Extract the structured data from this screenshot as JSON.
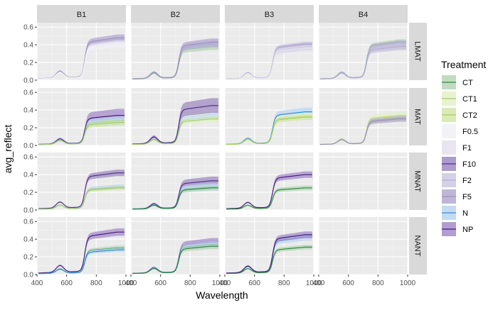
{
  "chart_data": {
    "type": "line",
    "xlabel": "Wavelength",
    "ylabel": "avg_reflect",
    "xlim": [
      400,
      1000
    ],
    "ylim": [
      0,
      0.65
    ],
    "x_ticks": [
      400,
      600,
      800,
      1000
    ],
    "y_ticks": [
      0.0,
      0.2,
      0.4,
      0.6
    ],
    "x_tick_labels": [
      "400",
      "600",
      "800",
      "1000"
    ],
    "y_tick_labels": [
      "0.0",
      "0.2",
      "0.4",
      "0.6"
    ],
    "grid": true,
    "legend_position": "right",
    "panel_background": "#EBEBEB",
    "strip_background": "#D9D9D9",
    "columns": [
      "B1",
      "B2",
      "B3",
      "B4"
    ],
    "rows": [
      "LMAT",
      "MAT",
      "MNAT",
      "NANT"
    ],
    "legend": {
      "title": "Treatment",
      "items": [
        {
          "label": "CT",
          "fill": "#B5D6B5",
          "line": "#2E8B3E"
        },
        {
          "label": "CT1",
          "fill": "#E3F1C6",
          "line": "#A6CF62"
        },
        {
          "label": "CT2",
          "fill": "#D2E6A9",
          "line": "#A6CF62"
        },
        {
          "label": "F0.5",
          "fill": "#F1F0F6",
          "line": "#F1F0F6"
        },
        {
          "label": "F1",
          "fill": "#E4E1EE",
          "line": "#E4E1EE"
        },
        {
          "label": "F10",
          "fill": "#9D8BC2",
          "line": "#5A2E8C"
        },
        {
          "label": "F2",
          "fill": "#CDC8E0",
          "line": "#B7B0D6"
        },
        {
          "label": "F5",
          "fill": "#B3A9CF",
          "line": "#9E92C4"
        },
        {
          "label": "N",
          "fill": "#B9D5F0",
          "line": "#2F8FE0"
        },
        {
          "label": "NP",
          "fill": "#A58CC9",
          "line": "#4A1C86"
        }
      ]
    },
    "panels": [
      {
        "row": "LMAT",
        "col": "B1",
        "series": [
          {
            "treatment": "F2",
            "plateau": 0.44,
            "band": 0.07
          },
          {
            "treatment": "F5",
            "plateau": 0.48,
            "band": 0.07
          },
          {
            "treatment": "F1",
            "plateau": 0.42,
            "band": 0.06
          },
          {
            "treatment": "F0.5",
            "plateau": 0.4,
            "band": 0.06
          }
        ]
      },
      {
        "row": "LMAT",
        "col": "B2",
        "series": [
          {
            "treatment": "CT",
            "plateau": 0.38,
            "band": 0.07
          },
          {
            "treatment": "F2",
            "plateau": 0.41,
            "band": 0.08
          },
          {
            "treatment": "F5",
            "plateau": 0.43,
            "band": 0.08
          }
        ]
      },
      {
        "row": "LMAT",
        "col": "B3",
        "series": [
          {
            "treatment": "F2",
            "plateau": 0.4,
            "band": 0.07
          },
          {
            "treatment": "F5",
            "plateau": 0.38,
            "band": 0.08
          },
          {
            "treatment": "F1",
            "plateau": 0.36,
            "band": 0.07
          }
        ]
      },
      {
        "row": "LMAT",
        "col": "B4",
        "series": [
          {
            "treatment": "CT",
            "plateau": 0.42,
            "band": 0.08
          },
          {
            "treatment": "F5",
            "plateau": 0.4,
            "band": 0.09
          },
          {
            "treatment": "F2",
            "plateau": 0.38,
            "band": 0.08
          }
        ]
      },
      {
        "row": "MAT",
        "col": "B1",
        "series": [
          {
            "treatment": "NP",
            "plateau": 0.34,
            "band": 0.14
          },
          {
            "treatment": "N",
            "plateau": 0.28,
            "band": 0.09
          },
          {
            "treatment": "CT2",
            "plateau": 0.26,
            "band": 0.07
          }
        ]
      },
      {
        "row": "MAT",
        "col": "B2",
        "series": [
          {
            "treatment": "F10",
            "plateau": 0.45,
            "band": 0.16
          },
          {
            "treatment": "N",
            "plateau": 0.32,
            "band": 0.07
          },
          {
            "treatment": "CT1",
            "plateau": 0.3,
            "band": 0.07
          }
        ]
      },
      {
        "row": "MAT",
        "col": "B3",
        "series": [
          {
            "treatment": "N",
            "plateau": 0.38,
            "band": 0.09
          },
          {
            "treatment": "CT1",
            "plateau": 0.33,
            "band": 0.07
          },
          {
            "treatment": "CT2",
            "plateau": 0.32,
            "band": 0.06
          }
        ]
      },
      {
        "row": "MAT",
        "col": "B4",
        "series": [
          {
            "treatment": "CT1",
            "plateau": 0.34,
            "band": 0.08
          },
          {
            "treatment": "CT2",
            "plateau": 0.31,
            "band": 0.06
          },
          {
            "treatment": "F5",
            "plateau": 0.3,
            "band": 0.06
          }
        ]
      },
      {
        "row": "MNAT",
        "col": "B1",
        "series": [
          {
            "treatment": "F10",
            "plateau": 0.42,
            "band": 0.07
          },
          {
            "treatment": "N",
            "plateau": 0.26,
            "band": 0.05
          },
          {
            "treatment": "CT2",
            "plateau": 0.25,
            "band": 0.04
          }
        ]
      },
      {
        "row": "MNAT",
        "col": "B2",
        "series": [
          {
            "treatment": "F10",
            "plateau": 0.33,
            "band": 0.09
          },
          {
            "treatment": "N",
            "plateau": 0.26,
            "band": 0.08
          },
          {
            "treatment": "CT",
            "plateau": 0.25,
            "band": 0.05
          }
        ]
      },
      {
        "row": "MNAT",
        "col": "B3",
        "series": [
          {
            "treatment": "NP",
            "plateau": 0.4,
            "band": 0.07
          },
          {
            "treatment": "CT",
            "plateau": 0.25,
            "band": 0.05
          }
        ]
      },
      {
        "row": "NANT",
        "col": "B1",
        "series": [
          {
            "treatment": "NP",
            "plateau": 0.48,
            "band": 0.08
          },
          {
            "treatment": "CT",
            "plateau": 0.3,
            "band": 0.05
          },
          {
            "treatment": "N",
            "plateau": 0.28,
            "band": 0.04
          }
        ]
      },
      {
        "row": "NANT",
        "col": "B2",
        "series": [
          {
            "treatment": "NP",
            "plateau": 0.37,
            "band": 0.08
          },
          {
            "treatment": "N",
            "plateau": 0.34,
            "band": 0.07
          },
          {
            "treatment": "CT",
            "plateau": 0.32,
            "band": 0.06
          }
        ]
      },
      {
        "row": "NANT",
        "col": "B3",
        "series": [
          {
            "treatment": "N",
            "plateau": 0.42,
            "band": 0.07
          },
          {
            "treatment": "NP",
            "plateau": 0.45,
            "band": 0.07
          },
          {
            "treatment": "CT",
            "plateau": 0.31,
            "band": 0.05
          }
        ]
      }
    ]
  }
}
